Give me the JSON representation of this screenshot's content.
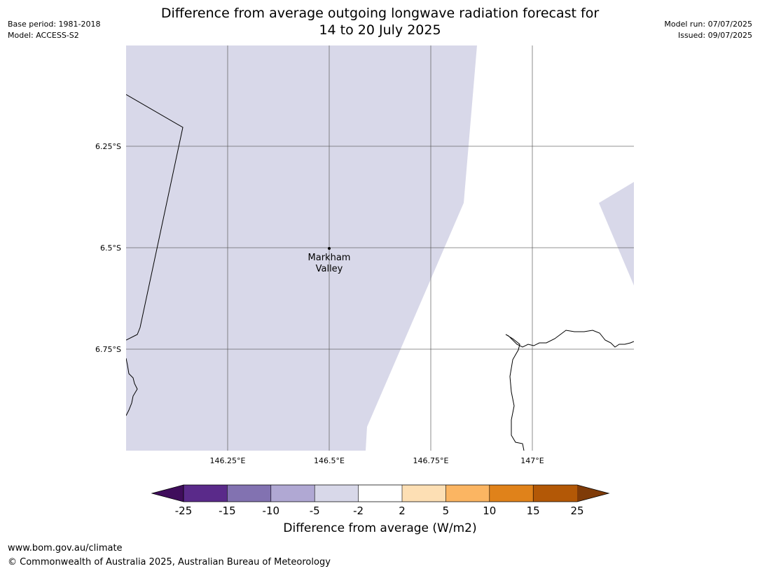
{
  "header": {
    "title_line1": "Difference from average outgoing longwave radiation forecast for",
    "title_line2": "14 to 20 July 2025",
    "base_period": "Base period: 1981-2018",
    "model": "Model: ACCESS-S2",
    "model_run": "Model run: 07/07/2025",
    "issued": "Issued: 09/07/2025"
  },
  "map": {
    "lat_labels": [
      "6.25°S",
      "6.5°S",
      "6.75°S"
    ],
    "lon_labels": [
      "146.25°E",
      "146.5°E",
      "146.75°E",
      "147°E"
    ],
    "place": {
      "name_line1": "Markham",
      "name_line2": "Valley"
    },
    "shade_color": "#d8d8e9",
    "shaded_category": "-5 to -2"
  },
  "colorbar": {
    "title": "Difference from average (W/m2)",
    "ticks": [
      "-25",
      "-15",
      "-10",
      "-5",
      "-2",
      "2",
      "5",
      "10",
      "15",
      "25"
    ],
    "colors": {
      "below_min": "#3f0d5c",
      "segments": [
        "#5a2a8a",
        "#8272b1",
        "#b0a8d3",
        "#d8d8e9",
        "#ffffff",
        "#fddfb4",
        "#fbb562",
        "#e0821a",
        "#b35806"
      ],
      "above_max": "#7f3b08"
    }
  },
  "footer": {
    "url": "www.bom.gov.au/climate",
    "copyright": "© Commonwealth of Australia 2025, Australian Bureau of Meteorology"
  }
}
